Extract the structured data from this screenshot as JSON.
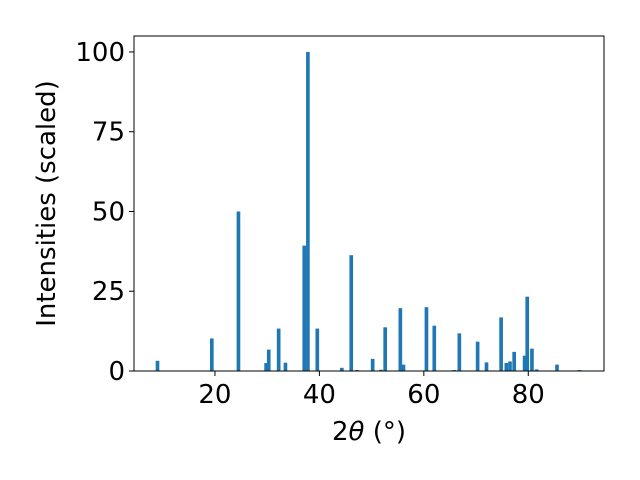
{
  "chart_data": {
    "type": "bar",
    "xlabel_prefix": "2",
    "xlabel_theta": "θ",
    "xlabel_suffix": " (°)",
    "ylabel": "Intensities (scaled)",
    "xlim": [
      4.5,
      94.5
    ],
    "ylim": [
      0,
      105
    ],
    "xticks": [
      20,
      40,
      60,
      80
    ],
    "yticks": [
      0,
      25,
      50,
      75,
      100
    ],
    "bar_color": "#1f77b4",
    "bar_width": 0.7,
    "grid": false,
    "x": [
      9.0,
      19.4,
      24.5,
      29.8,
      30.3,
      32.2,
      33.5,
      37.1,
      37.8,
      39.6,
      44.3,
      46.1,
      47.2,
      50.2,
      51.8,
      52.6,
      55.5,
      56.1,
      60.5,
      62.0,
      65.8,
      66.8,
      70.3,
      72.0,
      74.8,
      75.8,
      76.5,
      77.3,
      79.3,
      79.8,
      80.7,
      81.6,
      85.5,
      89.8
    ],
    "values": [
      3.2,
      10.2,
      50.0,
      2.5,
      6.7,
      13.3,
      2.6,
      39.3,
      100.0,
      13.3,
      1.0,
      36.3,
      0.3,
      3.8,
      0.4,
      13.7,
      19.7,
      2.0,
      20.0,
      14.2,
      0.3,
      11.8,
      9.2,
      2.7,
      16.8,
      2.5,
      3.0,
      6.0,
      4.8,
      23.3,
      7.0,
      0.5,
      2.0,
      0.3
    ]
  }
}
